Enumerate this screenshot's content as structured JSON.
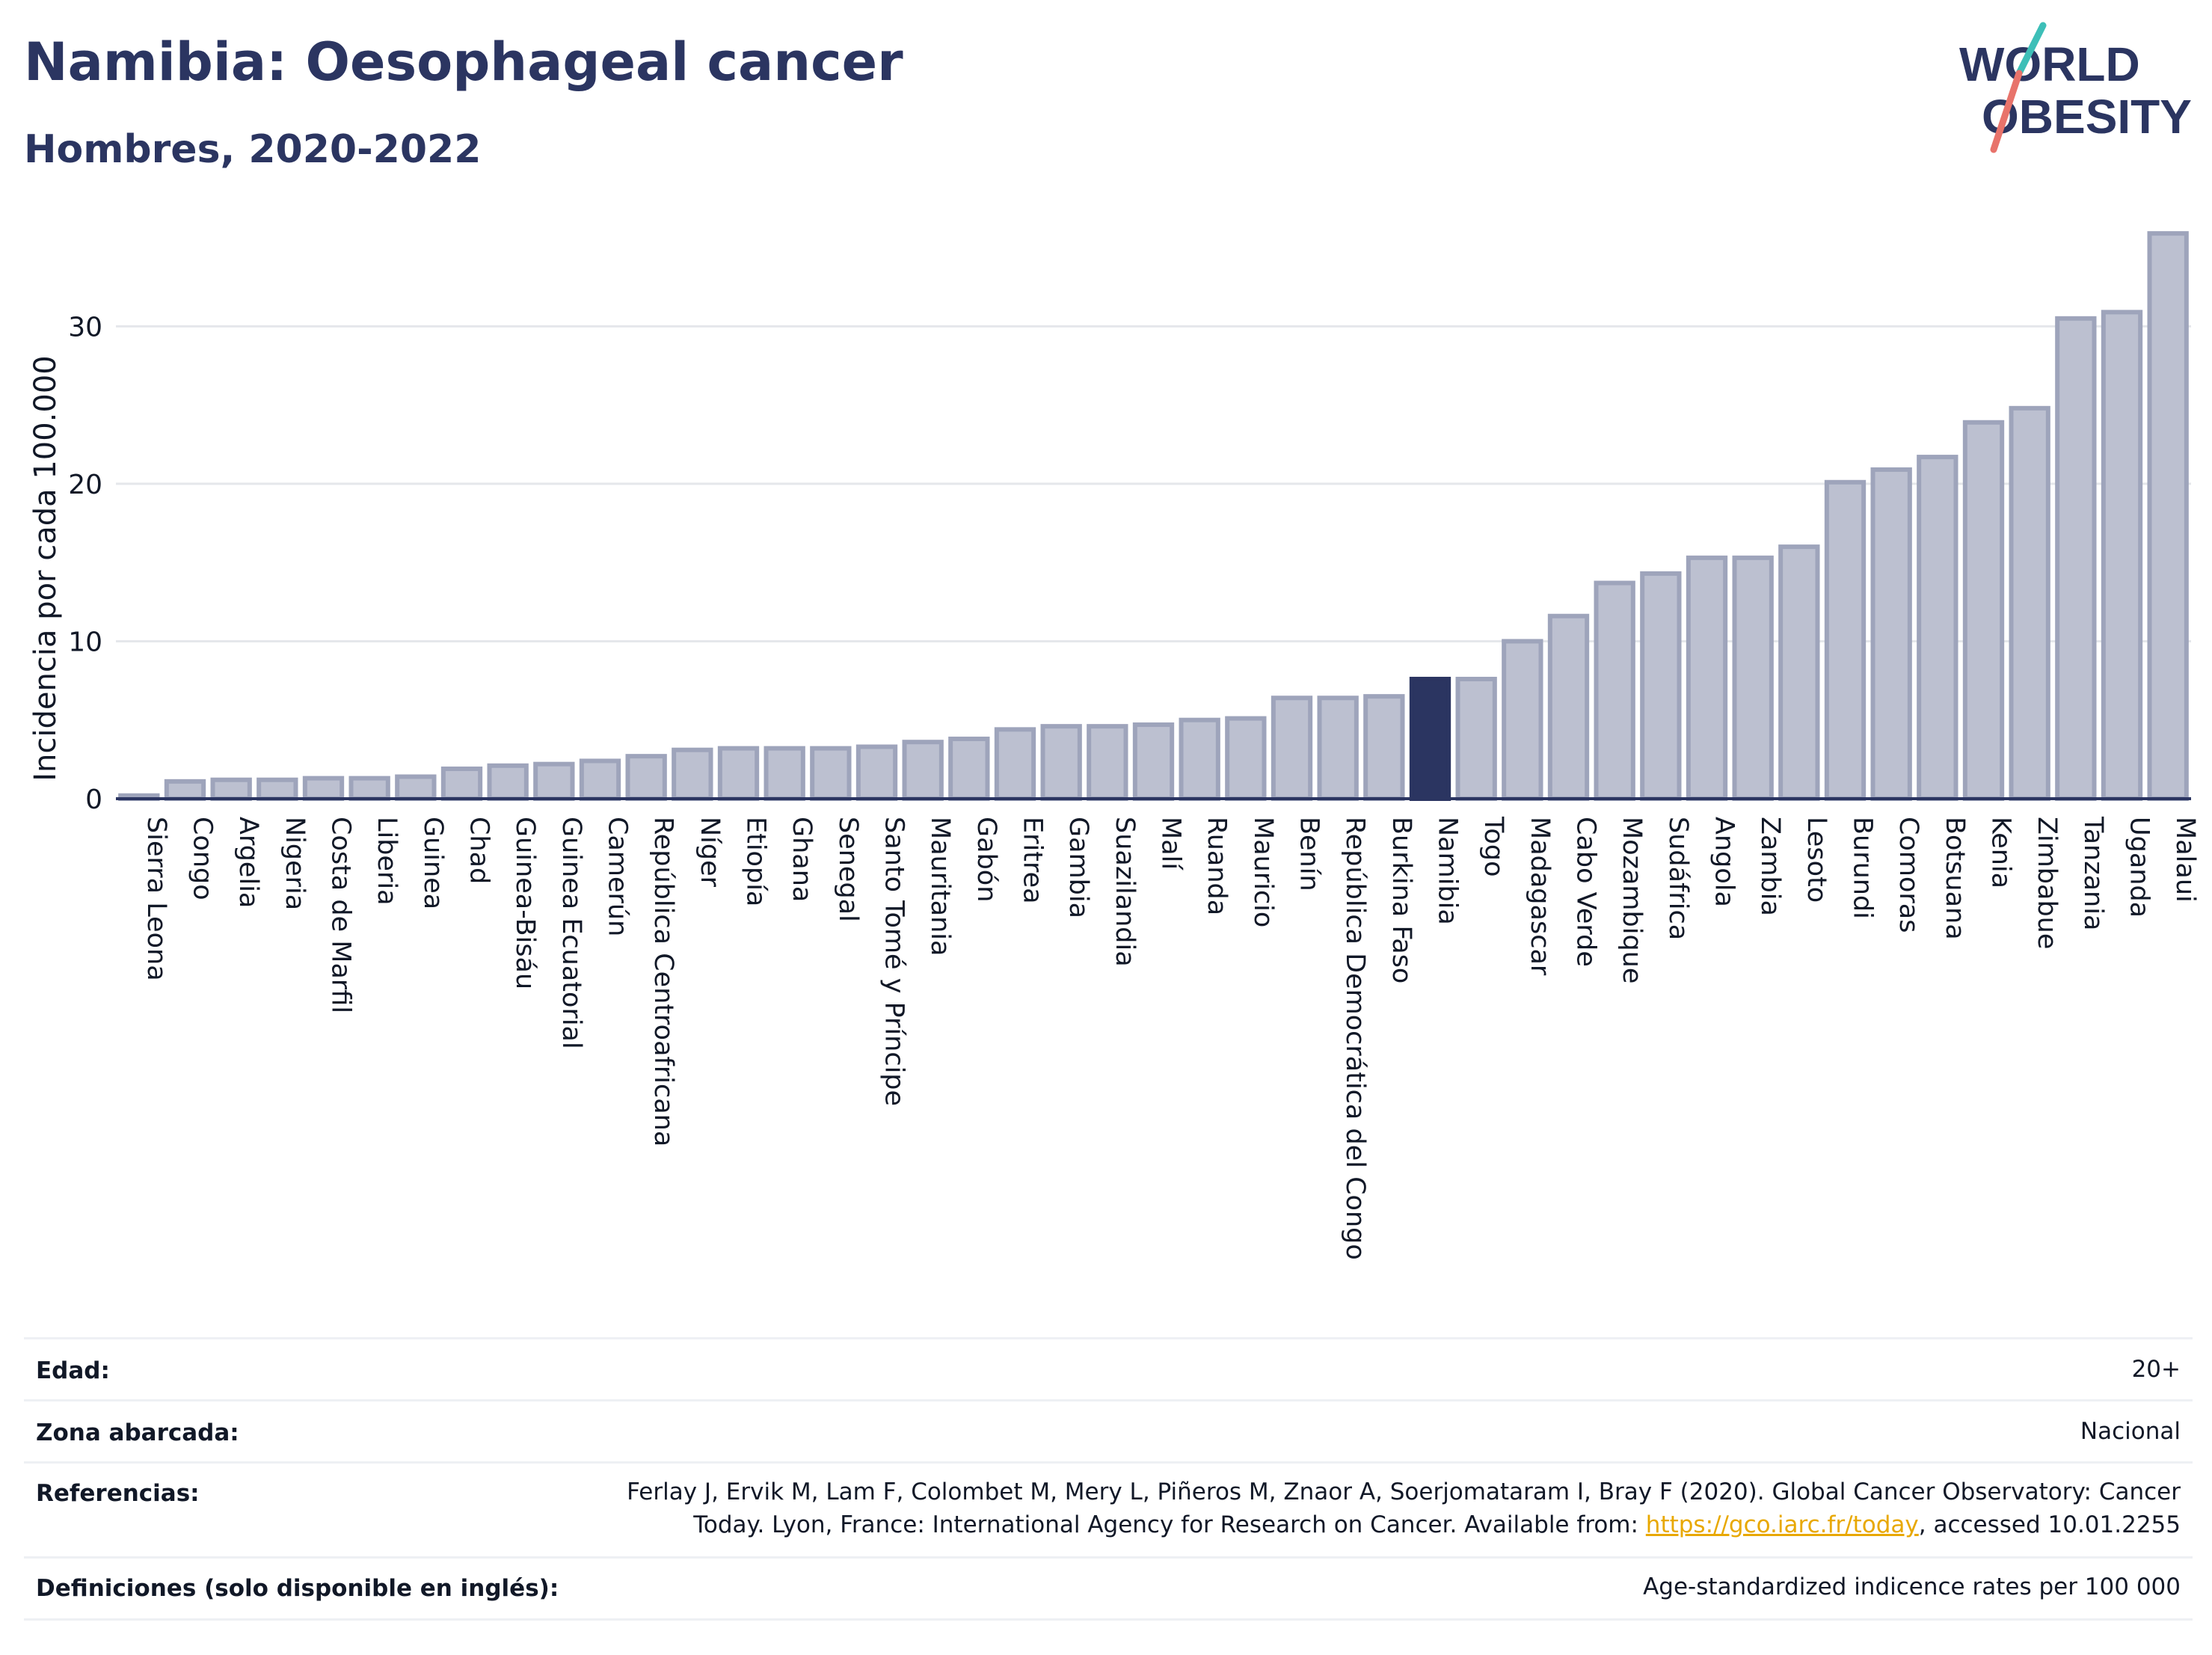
{
  "header": {
    "title": "Namibia: Oesophageal cancer",
    "subtitle": "Hombres, 2020-2022"
  },
  "logo": {
    "line1": "WORLD",
    "line2": "OBESITY",
    "brand_color": "#2b3561",
    "accent_color_1": "#3dbfb8",
    "accent_color_2": "#e8736b"
  },
  "colors": {
    "bar_fill": "#bcc0d0",
    "bar_stroke": "#9ea4bb",
    "highlight_fill": "#2b3561",
    "grid": "#e5e7eb",
    "axis": "#2b3561"
  },
  "chart_data": {
    "type": "bar",
    "ylabel": "Incidencia por cada 100.000",
    "xlabel": "",
    "ylim": [
      0,
      36
    ],
    "yticks": [
      0,
      10,
      20,
      30
    ],
    "grid": true,
    "highlight": "Namibia",
    "categories": [
      "Sierra Leona",
      "Congo",
      "Argelia",
      "Nigeria",
      "Costa de Marfil",
      "Liberia",
      "Guinea",
      "Chad",
      "Guinea-Bisáu",
      "Guinea Ecuatorial",
      "Camerún",
      "República Centroafricana",
      "Níger",
      "Etiopía",
      "Ghana",
      "Senegal",
      "Santo Tomé y Príncipe",
      "Mauritania",
      "Gabón",
      "Eritrea",
      "Gambia",
      "Suazilandia",
      "Malí",
      "Ruanda",
      "Mauricio",
      "Benín",
      "República Democrática del Congo",
      "Burkina Faso",
      "Namibia",
      "Togo",
      "Madagascar",
      "Cabo Verde",
      "Mozambique",
      "Sudáfrica",
      "Angola",
      "Zambia",
      "Lesoto",
      "Burundi",
      "Comoras",
      "Botsuana",
      "Kenia",
      "Zimbabue",
      "Tanzania",
      "Uganda",
      "Malaui"
    ],
    "values": [
      0.2,
      1.1,
      1.2,
      1.2,
      1.3,
      1.3,
      1.4,
      1.9,
      2.1,
      2.2,
      2.4,
      2.7,
      3.1,
      3.2,
      3.2,
      3.2,
      3.3,
      3.6,
      3.8,
      4.4,
      4.6,
      4.6,
      4.7,
      5.0,
      5.1,
      6.4,
      6.4,
      6.5,
      7.6,
      7.6,
      10.0,
      11.6,
      13.7,
      14.3,
      15.3,
      15.3,
      16.0,
      20.1,
      20.9,
      21.7,
      23.9,
      24.8,
      30.5,
      30.9,
      35.9
    ]
  },
  "meta": {
    "age_label": "Edad:",
    "age_value": "20+",
    "area_label": "Zona abarcada:",
    "area_value": "Nacional",
    "ref_label": "Referencias:",
    "ref_line1": "Ferlay J, Ervik M, Lam F, Colombet M, Mery L, Piñeros M, Znaor A, Soerjomataram I, Bray F (2020). Global Cancer Observatory: Cancer",
    "ref_line2_prefix": "Today. Lyon, France: International Agency for Research on Cancer. Available from: ",
    "ref_link": "https://gco.iarc.fr/today",
    "ref_line2_suffix": ", accessed 10.01.2255",
    "def_label": "Definiciones (solo disponible en inglés):",
    "def_value": "Age-standardized indicence rates per 100 000"
  }
}
